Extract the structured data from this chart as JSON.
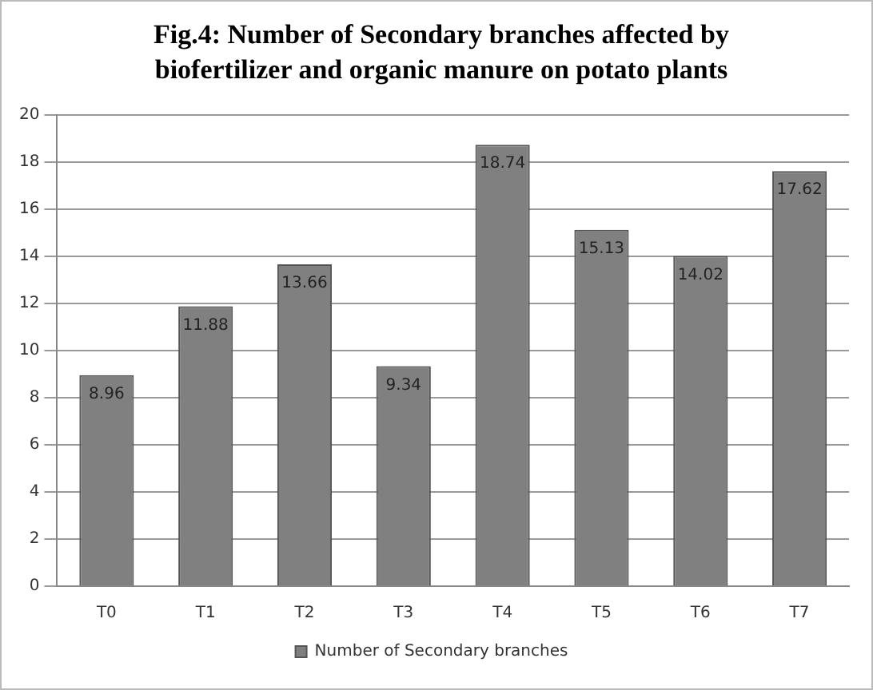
{
  "chart_data": {
    "type": "bar",
    "title": "Fig.4: Number of Secondary branches affected by biofertilizer and organic manure on potato plants",
    "categories": [
      "T0",
      "T1",
      "T2",
      "T3",
      "T4",
      "T5",
      "T6",
      "T7"
    ],
    "series": [
      {
        "name": "Number of Secondary branches",
        "color": "#808080",
        "values": [
          8.96,
          11.88,
          13.66,
          9.34,
          18.74,
          15.13,
          14.02,
          17.62
        ]
      }
    ],
    "ylim": [
      0,
      20
    ],
    "yticks": [
      0,
      2,
      4,
      6,
      8,
      10,
      12,
      14,
      16,
      18,
      20
    ],
    "grid": "y",
    "legend": "bottom",
    "data_labels": true
  }
}
